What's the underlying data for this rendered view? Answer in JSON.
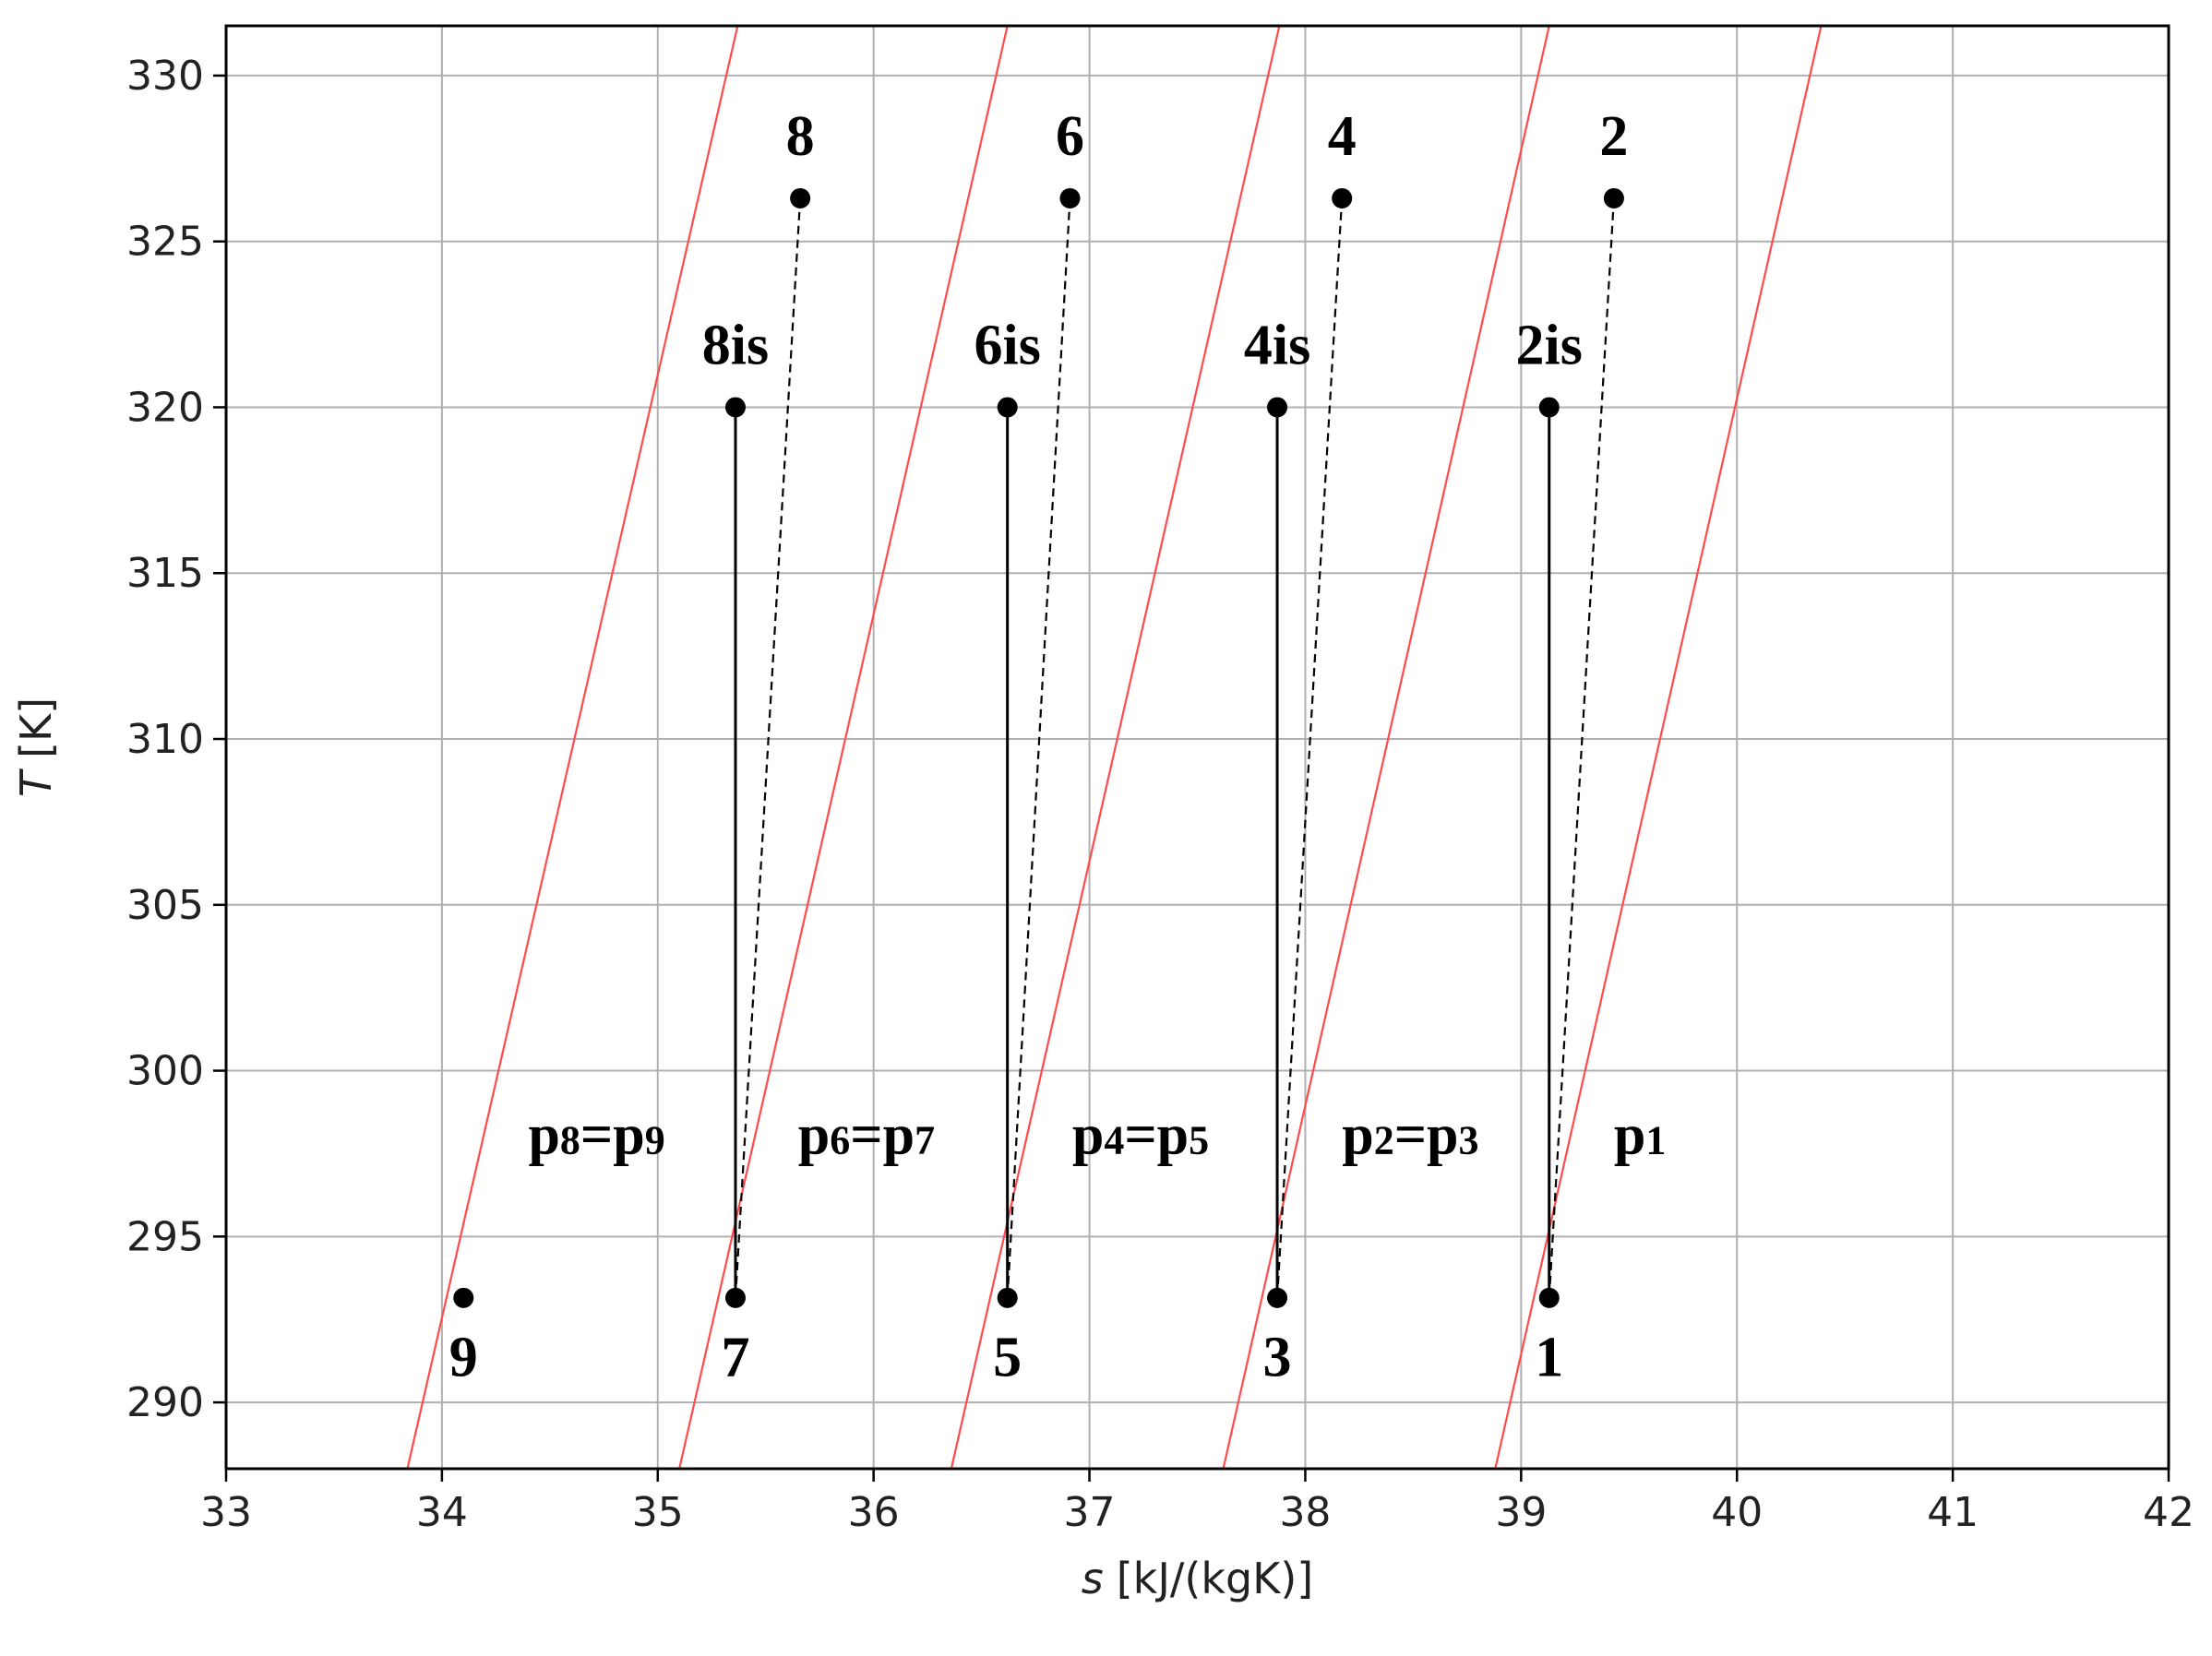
{
  "chart_data": {
    "type": "line",
    "xlabel_var": "s",
    "xlabel_unit": "[kJ/(kgK)]",
    "ylabel_var": "T",
    "ylabel_unit": "[K]",
    "xlim": [
      33,
      42
    ],
    "ylim": [
      288,
      331.5
    ],
    "xticks": [
      "33",
      "34",
      "35",
      "36",
      "37",
      "38",
      "39",
      "40",
      "41",
      "42"
    ],
    "yticks": [
      "290",
      "295",
      "300",
      "305",
      "310",
      "315",
      "320",
      "325",
      "330"
    ],
    "grid": true,
    "isobar_color": "#ff4b4b",
    "isobars": [
      {
        "id": "p8p9",
        "points": [
          [
            33.84,
            288
          ],
          [
            35.37,
            331.5
          ]
        ],
        "label": {
          "main1": "p",
          "sub1": "8",
          "main2": "=p",
          "sub2": "9",
          "x": 34.4,
          "y": 297.5
        }
      },
      {
        "id": "p6p7",
        "points": [
          [
            35.1,
            288
          ],
          [
            36.62,
            331.5
          ]
        ],
        "label": {
          "main1": "p",
          "sub1": "6",
          "main2": "=p",
          "sub2": "7",
          "x": 35.65,
          "y": 297.5
        }
      },
      {
        "id": "p4p5",
        "points": [
          [
            36.36,
            288
          ],
          [
            37.88,
            331.5
          ]
        ],
        "label": {
          "main1": "p",
          "sub1": "4",
          "main2": "=p",
          "sub2": "5",
          "x": 36.92,
          "y": 297.5
        }
      },
      {
        "id": "p2p3",
        "points": [
          [
            37.62,
            288
          ],
          [
            39.13,
            331.5
          ]
        ],
        "label": {
          "main1": "p",
          "sub1": "2",
          "main2": "=p",
          "sub2": "3",
          "x": 38.17,
          "y": 297.5
        }
      },
      {
        "id": "p1",
        "points": [
          [
            38.88,
            288
          ],
          [
            40.39,
            331.5
          ]
        ],
        "label": {
          "main1": "p",
          "sub1": "1",
          "main2": "",
          "sub2": "",
          "x": 39.43,
          "y": 297.5
        }
      }
    ],
    "points": [
      {
        "label": "1",
        "s": 39.13,
        "T": 293.15,
        "lx": 39.13,
        "ly": 290.8
      },
      {
        "label": "2is",
        "s": 39.13,
        "T": 320.0,
        "lx": 39.13,
        "ly": 321.3
      },
      {
        "label": "2",
        "s": 39.43,
        "T": 326.3,
        "lx": 39.43,
        "ly": 327.6
      },
      {
        "label": "3",
        "s": 37.87,
        "T": 293.15,
        "lx": 37.87,
        "ly": 290.8
      },
      {
        "label": "4is",
        "s": 37.87,
        "T": 320.0,
        "lx": 37.87,
        "ly": 321.3
      },
      {
        "label": "4",
        "s": 38.17,
        "T": 326.3,
        "lx": 38.17,
        "ly": 327.6
      },
      {
        "label": "5",
        "s": 36.62,
        "T": 293.15,
        "lx": 36.62,
        "ly": 290.8
      },
      {
        "label": "6is",
        "s": 36.62,
        "T": 320.0,
        "lx": 36.62,
        "ly": 321.3
      },
      {
        "label": "6",
        "s": 36.91,
        "T": 326.3,
        "lx": 36.91,
        "ly": 327.6
      },
      {
        "label": "7",
        "s": 35.36,
        "T": 293.15,
        "lx": 35.36,
        "ly": 290.8
      },
      {
        "label": "8is",
        "s": 35.36,
        "T": 320.0,
        "lx": 35.36,
        "ly": 321.3
      },
      {
        "label": "8",
        "s": 35.66,
        "T": 326.3,
        "lx": 35.66,
        "ly": 327.6
      },
      {
        "label": "9",
        "s": 34.1,
        "T": 293.15,
        "lx": 34.1,
        "ly": 290.8
      }
    ],
    "isentropic_compression": [
      {
        "from": "1",
        "to": "2is"
      },
      {
        "from": "3",
        "to": "4is"
      },
      {
        "from": "5",
        "to": "6is"
      },
      {
        "from": "7",
        "to": "8is"
      }
    ],
    "real_compression": [
      {
        "from": "1",
        "to": "2"
      },
      {
        "from": "3",
        "to": "4"
      },
      {
        "from": "5",
        "to": "6"
      },
      {
        "from": "7",
        "to": "8"
      }
    ]
  }
}
